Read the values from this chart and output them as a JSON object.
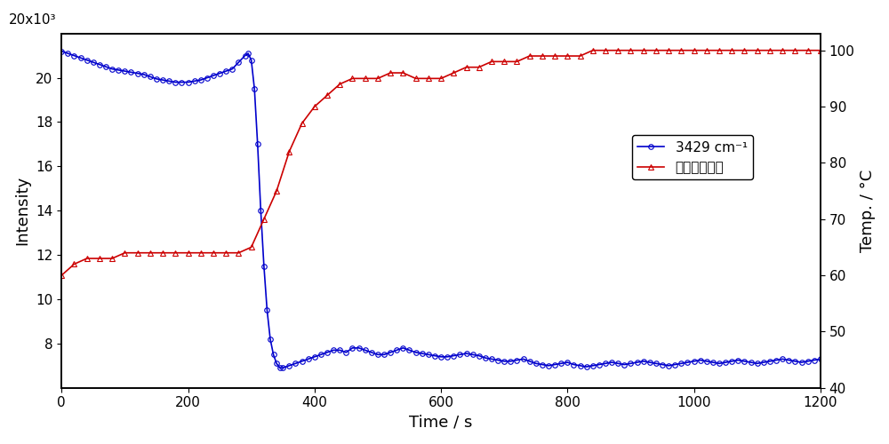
{
  "title": "",
  "xlabel": "Time / s",
  "ylabel": "Intensity",
  "ylabel_right": "Temp. / °C",
  "xlim": [
    0,
    1200
  ],
  "ylim_left": [
    6000,
    22000
  ],
  "ylim_right": [
    40,
    103
  ],
  "yticks_left": [
    8000,
    10000,
    12000,
    14000,
    16000,
    18000,
    20000
  ],
  "ytick_labels_left": [
    "8",
    "10",
    "12",
    "14",
    "16",
    "18",
    "20"
  ],
  "ytick_label_top": "20x10³",
  "yticks_right": [
    40,
    50,
    60,
    70,
    80,
    90,
    100
  ],
  "xticks": [
    0,
    200,
    400,
    600,
    800,
    1000,
    1200
  ],
  "legend_blue": "3429 cm⁻¹",
  "legend_red": "温度（右軸）",
  "blue_color": "#0000cc",
  "red_color": "#cc0000",
  "blue_t": [
    0,
    10,
    20,
    30,
    40,
    50,
    60,
    70,
    80,
    90,
    100,
    110,
    120,
    130,
    140,
    150,
    160,
    170,
    180,
    190,
    200,
    210,
    220,
    230,
    240,
    250,
    260,
    270,
    280,
    290,
    295,
    300,
    305,
    310,
    315,
    320,
    325,
    330,
    335,
    340,
    345,
    350,
    360,
    370,
    380,
    390,
    400,
    410,
    420,
    430,
    440,
    450,
    460,
    470,
    480,
    490,
    500,
    510,
    520,
    530,
    540,
    550,
    560,
    570,
    580,
    590,
    600,
    610,
    620,
    630,
    640,
    650,
    660,
    670,
    680,
    690,
    700,
    710,
    720,
    730,
    740,
    750,
    760,
    770,
    780,
    790,
    800,
    810,
    820,
    830,
    840,
    850,
    860,
    870,
    880,
    890,
    900,
    910,
    920,
    930,
    940,
    950,
    960,
    970,
    980,
    990,
    1000,
    1010,
    1020,
    1030,
    1040,
    1050,
    1060,
    1070,
    1080,
    1090,
    1100,
    1110,
    1120,
    1130,
    1140,
    1150,
    1160,
    1170,
    1180,
    1190,
    1200
  ],
  "blue_v": [
    21200,
    21100,
    21000,
    20900,
    20800,
    20700,
    20600,
    20500,
    20400,
    20350,
    20300,
    20250,
    20200,
    20150,
    20050,
    19950,
    19900,
    19850,
    19800,
    19800,
    19800,
    19850,
    19900,
    20000,
    20100,
    20200,
    20300,
    20400,
    20700,
    21000,
    21100,
    20800,
    19500,
    17000,
    14000,
    11500,
    9500,
    8200,
    7500,
    7100,
    6900,
    6900,
    7000,
    7100,
    7200,
    7300,
    7400,
    7500,
    7600,
    7700,
    7700,
    7600,
    7800,
    7800,
    7700,
    7600,
    7500,
    7500,
    7600,
    7700,
    7800,
    7700,
    7600,
    7550,
    7500,
    7450,
    7400,
    7400,
    7450,
    7500,
    7550,
    7500,
    7450,
    7350,
    7300,
    7250,
    7200,
    7200,
    7250,
    7300,
    7200,
    7100,
    7050,
    7000,
    7050,
    7100,
    7150,
    7050,
    7000,
    6950,
    7000,
    7050,
    7100,
    7150,
    7100,
    7050,
    7100,
    7150,
    7200,
    7150,
    7100,
    7050,
    7000,
    7050,
    7100,
    7150,
    7200,
    7250,
    7200,
    7150,
    7100,
    7150,
    7200,
    7250,
    7200,
    7150,
    7100,
    7150,
    7200,
    7250,
    7300,
    7250,
    7200,
    7150,
    7200,
    7250,
    7300
  ],
  "red_t": [
    0,
    20,
    40,
    60,
    80,
    100,
    120,
    140,
    160,
    180,
    200,
    220,
    240,
    260,
    280,
    300,
    320,
    340,
    360,
    380,
    400,
    420,
    440,
    460,
    480,
    500,
    520,
    540,
    560,
    580,
    600,
    620,
    640,
    660,
    680,
    700,
    720,
    740,
    760,
    780,
    800,
    820,
    840,
    860,
    880,
    900,
    920,
    940,
    960,
    980,
    1000,
    1020,
    1040,
    1060,
    1080,
    1100,
    1120,
    1140,
    1160,
    1180,
    1200
  ],
  "red_v": [
    60,
    62,
    63,
    63,
    63,
    64,
    64,
    64,
    64,
    64,
    64,
    64,
    64,
    64,
    64,
    65,
    70,
    75,
    82,
    87,
    90,
    92,
    94,
    95,
    95,
    95,
    96,
    96,
    95,
    95,
    95,
    96,
    97,
    97,
    98,
    98,
    98,
    99,
    99,
    99,
    99,
    99,
    100,
    100,
    100,
    100,
    100,
    100,
    100,
    100,
    100,
    100,
    100,
    100,
    100,
    100,
    100,
    100,
    100,
    100,
    100
  ],
  "background_color": "#ffffff",
  "figsize": [
    10,
    5
  ]
}
